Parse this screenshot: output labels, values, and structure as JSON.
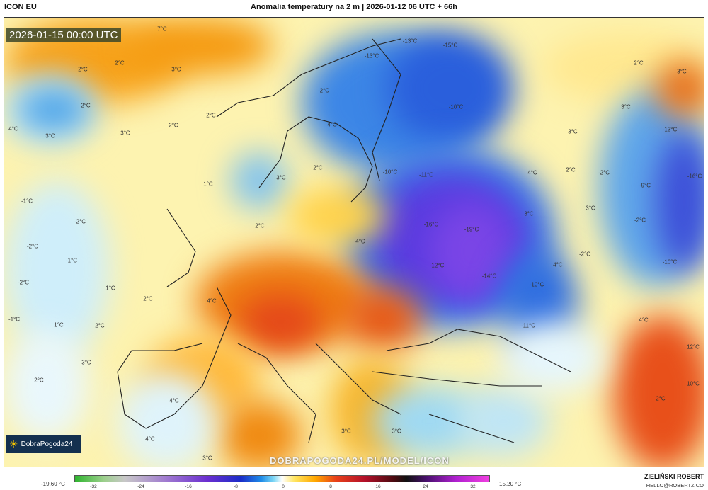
{
  "header": {
    "model": "ICON EU",
    "title": "Anomalia temperatury na 2 m | 2026-01-12 06 UTC + 66h"
  },
  "map": {
    "valid_time": "2026-01-15 00:00 UTC",
    "logo": "DobraPogoda24",
    "watermark": "DOBRAPOGODA24.PL/MODEL/ICON",
    "labels": [
      "7°C",
      "2°C",
      "2°C",
      "3°C",
      "2°C",
      "4°C",
      "3°C",
      "3°C",
      "2°C",
      "2°C",
      "1°C",
      "-1°C",
      "-2°C",
      "-2°C",
      "-1°C",
      "-2°C",
      "1°C",
      "2°C",
      "-1°C",
      "1°C",
      "2°C",
      "3°C",
      "2°C",
      "-15°C",
      "-13°C",
      "-13°C",
      "-10°C",
      "-2°C",
      "4°C",
      "2°C",
      "3°C",
      "-10°C",
      "-11°C",
      "-16°C",
      "-19°C",
      "-12°C",
      "-14°C",
      "-10°C",
      "-11°C",
      "4°C",
      "2°C",
      "4°C",
      "3°C",
      "2°C",
      "3°C",
      "3°C",
      "-2°C",
      "-2°C",
      "4°C",
      "3°C",
      "2°C",
      "3°C",
      "-13°C",
      "-16°C",
      "-9°C",
      "-2°C",
      "-10°C",
      "4°C",
      "12°C",
      "10°C",
      "4°C",
      "3°C",
      "3°C",
      "4°C",
      "3°C",
      "4°C",
      "2°C"
    ]
  },
  "colorbar": {
    "min_label": "-19.60 °C",
    "max_label": "15.20 °C",
    "ticks": [
      "-32",
      "-24",
      "-16",
      "-8",
      "0",
      "8",
      "16",
      "24",
      "32"
    ],
    "unit": "°C"
  },
  "credits": {
    "author": "ZIELIŃSKI ROBERT",
    "email": "HELLO@ROBERTZ.CO"
  }
}
